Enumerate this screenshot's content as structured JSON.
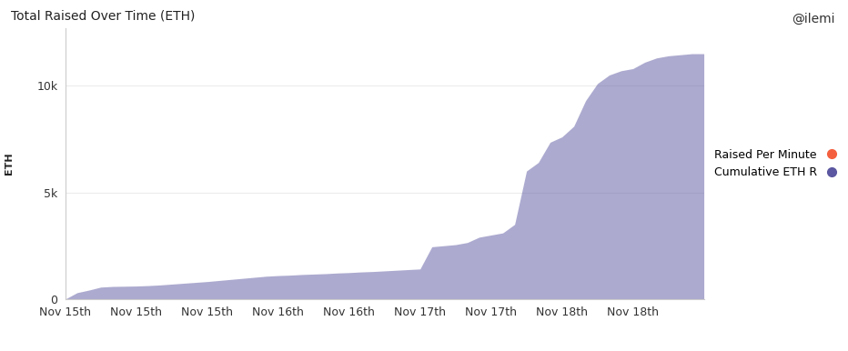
{
  "chart_data": {
    "type": "area",
    "title": "Total Raised Over Time (ETH)",
    "y_label": "ETH",
    "annotations": [
      "@ilemi"
    ],
    "categories": [
      "Nov 15th",
      null,
      null,
      null,
      null,
      null,
      "Nov 15th",
      null,
      null,
      null,
      null,
      null,
      "Nov 15th",
      null,
      null,
      null,
      null,
      null,
      "Nov 16th",
      null,
      null,
      null,
      null,
      null,
      "Nov 16th",
      null,
      null,
      null,
      null,
      null,
      "Nov 17th",
      null,
      null,
      null,
      null,
      null,
      "Nov 17th",
      null,
      null,
      null,
      null,
      null,
      "Nov 18th",
      null,
      null,
      null,
      null,
      null,
      "Nov 18th",
      null,
      null,
      null,
      null,
      null,
      null
    ],
    "series": [
      {
        "name": "Raised Per Minute",
        "color": "#f4603e",
        "type": "line",
        "values": [
          null,
          null,
          null,
          null,
          null,
          null,
          null,
          null,
          null,
          null,
          null,
          null,
          null,
          null,
          null,
          null,
          null,
          null,
          null,
          null,
          null,
          null,
          null,
          null,
          null,
          null,
          null,
          null,
          null,
          null,
          null,
          null,
          null,
          null,
          null,
          null,
          null,
          null,
          null,
          null,
          null,
          null,
          null,
          null,
          null,
          null,
          null,
          null,
          null,
          null,
          null,
          null,
          null,
          null,
          null
        ]
      },
      {
        "name": "Cumulative ETH R",
        "color": "#5b57a0",
        "type": "area",
        "values": [
          0,
          300,
          420,
          560,
          590,
          600,
          610,
          630,
          660,
          700,
          740,
          780,
          820,
          870,
          920,
          970,
          1020,
          1070,
          1100,
          1120,
          1150,
          1170,
          1190,
          1220,
          1240,
          1270,
          1290,
          1320,
          1350,
          1380,
          1410,
          2450,
          2500,
          2550,
          2650,
          2900,
          3000,
          3100,
          3500,
          6000,
          6400,
          7350,
          7600,
          8100,
          9300,
          10100,
          10500,
          10700,
          10800,
          11100,
          11300,
          11400,
          11450,
          11500,
          11500
        ]
      }
    ],
    "ylim": [
      0,
      12700
    ],
    "yticks": [
      0,
      {
        "value": 5000,
        "label": "5k"
      },
      {
        "value": 10000,
        "label": "10k"
      }
    ],
    "grid": true,
    "legend": "right"
  }
}
